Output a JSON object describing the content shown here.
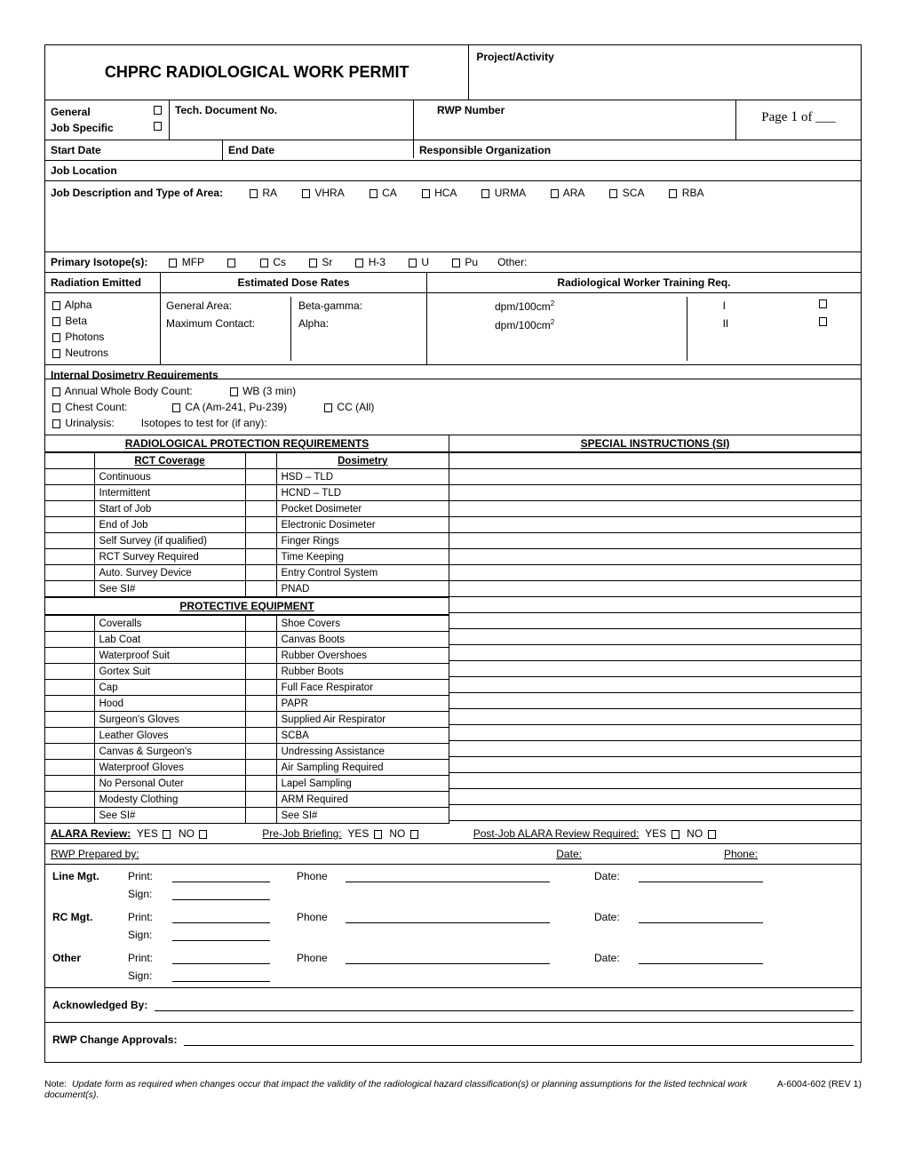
{
  "header": {
    "title": "CHPRC RADIOLOGICAL WORK PERMIT",
    "project_label": "Project/Activity"
  },
  "type": {
    "general": "General",
    "job_specific": "Job Specific"
  },
  "tech_doc": "Tech. Document No.",
  "rwp_no": "RWP Number",
  "page": {
    "prefix": "Page",
    "num": "1",
    "of": "of ___"
  },
  "dates": {
    "start": "Start Date",
    "end": "End Date"
  },
  "resp_org": "Responsible Organization",
  "job_loc": "Job Location",
  "job_desc": {
    "label": "Job Description and Type of Area:",
    "areas": [
      "RA",
      "VHRA",
      "CA",
      "HCA",
      "URMA",
      "ARA",
      "SCA",
      "RBA"
    ]
  },
  "isotopes": {
    "label": "Primary Isotope(s):",
    "items": [
      "MFP",
      "",
      "Cs",
      "Sr",
      "H-3",
      "U",
      "Pu"
    ],
    "other": "Other:"
  },
  "radiation": {
    "label": "Radiation Emitted",
    "types": [
      "Alpha",
      "Beta",
      "Photons",
      "Neutrons"
    ]
  },
  "dose": {
    "label": "Estimated Dose Rates",
    "ga": "General Area:",
    "mc": "Maximum Contact:",
    "bg": "Beta-gamma:",
    "alpha": "Alpha:",
    "unit": "dpm/100cm"
  },
  "training": {
    "label": "Radiological Worker Training Req.",
    "levels": [
      "I",
      "II"
    ]
  },
  "internal": {
    "label": "Internal Dosimetry Requirements",
    "wbc": "Annual Whole Body Count:",
    "wb": "WB (3 min)",
    "chest": "Chest Count:",
    "ca": "CA (Am-241, Pu-239)",
    "cc": "CC (All)",
    "urin": "Urinalysis:",
    "iso": "Isotopes to test for (if any):"
  },
  "rpr": {
    "title": "RADIOLOGICAL PROTECTION REQUIREMENTS",
    "si_title": "SPECIAL INSTRUCTIONS (SI)",
    "rct_head": "RCT Coverage",
    "dos_head": "Dosimetry",
    "rct": [
      "Continuous",
      "Intermittent",
      "Start of Job",
      "End of Job",
      "Self Survey (if qualified)",
      "RCT Survey Required",
      "Auto. Survey Device",
      "See SI#"
    ],
    "dos": [
      "HSD – TLD",
      "HCND – TLD",
      "Pocket Dosimeter",
      "Electronic Dosimeter",
      "Finger Rings",
      "Time Keeping",
      "Entry Control System",
      "PNAD"
    ],
    "pe_title": "PROTECTIVE EQUIPMENT",
    "pe_l": [
      "Coveralls",
      "Lab Coat",
      "Waterproof Suit",
      "Gortex Suit",
      "Cap",
      "Hood",
      "Surgeon's Gloves",
      "Leather Gloves",
      "Canvas & Surgeon's",
      "Waterproof Gloves",
      "No Personal Outer",
      "Modesty Clothing",
      "See SI#"
    ],
    "pe_r": [
      "Shoe Covers",
      "Canvas Boots",
      "Rubber Overshoes",
      "Rubber Boots",
      "Full Face Respirator",
      "PAPR",
      "Supplied Air Respirator",
      "SCBA",
      "Undressing Assistance",
      "Air Sampling Required",
      "Lapel Sampling",
      "ARM Required",
      "See SI#"
    ]
  },
  "reviews": {
    "alara": "ALARA Review:",
    "prejob": "Pre-Job Briefing:",
    "postjob": "Post-Job ALARA Review Required:",
    "yes": "YES",
    "no": "NO"
  },
  "sign": {
    "prepared": "RWP Prepared by:",
    "date": "Date:",
    "phone": "Phone:",
    "line_mgt": "Line Mgt.",
    "rc_mgt": "RC Mgt.",
    "other": "Other",
    "print": "Print:",
    "sign": "Sign:",
    "phone2": "Phone",
    "ack": "Acknowledged By:",
    "changes": "RWP Change Approvals:"
  },
  "footer": {
    "note_label": "Note:",
    "note": "Update form as required when changes occur that impact the validity of the radiological hazard classification(s) or planning assumptions for the listed technical work document(s).",
    "code": "A-6004-602 (REV 1)"
  }
}
